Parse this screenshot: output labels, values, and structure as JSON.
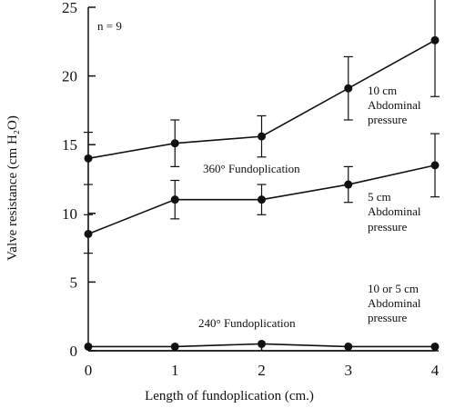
{
  "chart_data": {
    "type": "line",
    "xlabel": "Length of fundoplication (cm.)",
    "ylabel": "Valve resistance (cm H₂O)",
    "xlim": [
      0,
      4
    ],
    "ylim": [
      0,
      25
    ],
    "xticks": [
      0,
      1,
      2,
      3,
      4
    ],
    "yticks": [
      0,
      5,
      10,
      15,
      20,
      25
    ],
    "x": [
      0,
      1,
      2,
      3,
      4
    ],
    "series": [
      {
        "values": [
          14.0,
          15.1,
          15.6,
          19.1,
          22.6
        ],
        "error": [
          1.9,
          1.7,
          1.5,
          2.3,
          4.1
        ]
      },
      {
        "values": [
          8.5,
          11.0,
          11.0,
          12.1,
          13.5
        ],
        "error": [
          1.4,
          1.4,
          1.1,
          1.3,
          2.3
        ]
      },
      {
        "values": [
          0.3,
          0.3,
          0.5,
          0.3,
          0.3
        ],
        "error": [
          0,
          0,
          0,
          0,
          0
        ]
      },
      {
        "values": [
          0.0,
          0.0,
          0.0,
          0.0,
          0.0
        ],
        "error": [
          0,
          0,
          0,
          0,
          0
        ]
      }
    ],
    "annotations": {
      "n": "n = 9",
      "fundo360": "360° Fundoplication",
      "fundo240": "240° Fundoplication",
      "p10": [
        "10 cm",
        "Abdominal",
        "pressure"
      ],
      "p5": [
        "5 cm",
        "Abdominal",
        "pressure"
      ],
      "p105": [
        "10 or 5 cm",
        "Abdominal",
        "pressure"
      ]
    },
    "grid": false,
    "legend": "none"
  }
}
